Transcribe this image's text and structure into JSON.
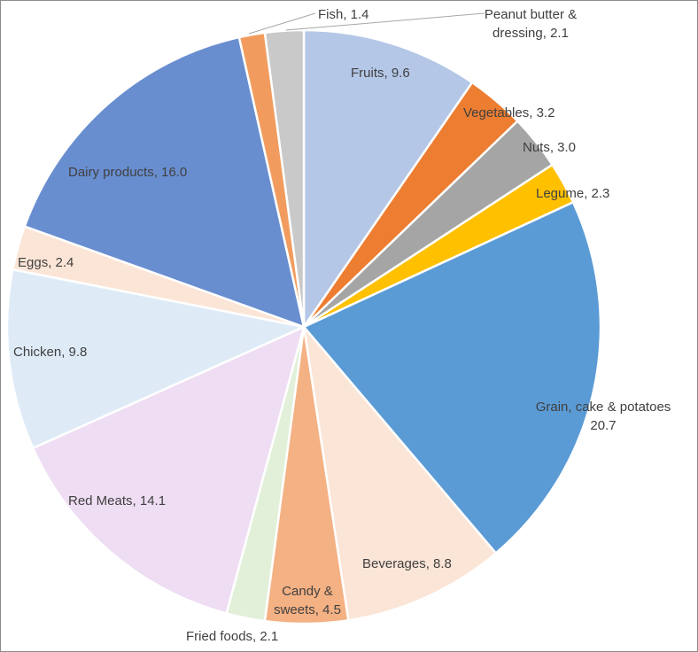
{
  "chart_data": {
    "type": "pie",
    "title": "",
    "start": "12 o'clock, clockwise",
    "slices": [
      {
        "label": "Fruits",
        "value": 9.6,
        "text": [
          "Fruits, 9.6"
        ],
        "color": "#B4C7E7"
      },
      {
        "label": "Vegetables",
        "value": 3.2,
        "text": [
          "Vegetables, 3.2"
        ],
        "color": "#ED7D31"
      },
      {
        "label": "Nuts",
        "value": 3.0,
        "text": [
          "Nuts, 3.0"
        ],
        "color": "#A5A5A5"
      },
      {
        "label": "Legume",
        "value": 2.3,
        "text": [
          "Legume, 2.3"
        ],
        "color": "#FFC000"
      },
      {
        "label": "Grain, cake & potatoes",
        "value": 20.7,
        "text": [
          "Grain, cake & potatoes",
          "20.7"
        ],
        "color": "#5B9BD5"
      },
      {
        "label": "Beverages",
        "value": 8.8,
        "text": [
          "Beverages, 8.8"
        ],
        "color": "#FBE5D6"
      },
      {
        "label": "Candy & sweets",
        "value": 4.5,
        "text": [
          "Candy &",
          "sweets, 4.5"
        ],
        "color": "#F4B183"
      },
      {
        "label": "Fried foods",
        "value": 2.1,
        "text": [
          "Fried foods, 2.1"
        ],
        "color": "#E2F0D9"
      },
      {
        "label": "Red Meats",
        "value": 14.1,
        "text": [
          "Red Meats, 14.1"
        ],
        "color": "#EEDDF3"
      },
      {
        "label": "Chicken",
        "value": 9.8,
        "text": [
          "Chicken, 9.8"
        ],
        "color": "#DEEBF7"
      },
      {
        "label": "Eggs",
        "value": 2.4,
        "text": [
          "Eggs, 2.4"
        ],
        "color": "#FBE5D6"
      },
      {
        "label": "Dairy products",
        "value": 16.0,
        "text": [
          "Dairy products, 16.0"
        ],
        "color": "#698ED0"
      },
      {
        "label": "Fish",
        "value": 1.4,
        "text": [
          "Fish, 1.4"
        ],
        "color": "#F19C5E"
      },
      {
        "label": "Peanut butter & dressing",
        "value": 2.1,
        "text": [
          "Peanut butter &",
          "dressing, 2.1"
        ],
        "color": "#C9C9C9"
      }
    ]
  }
}
